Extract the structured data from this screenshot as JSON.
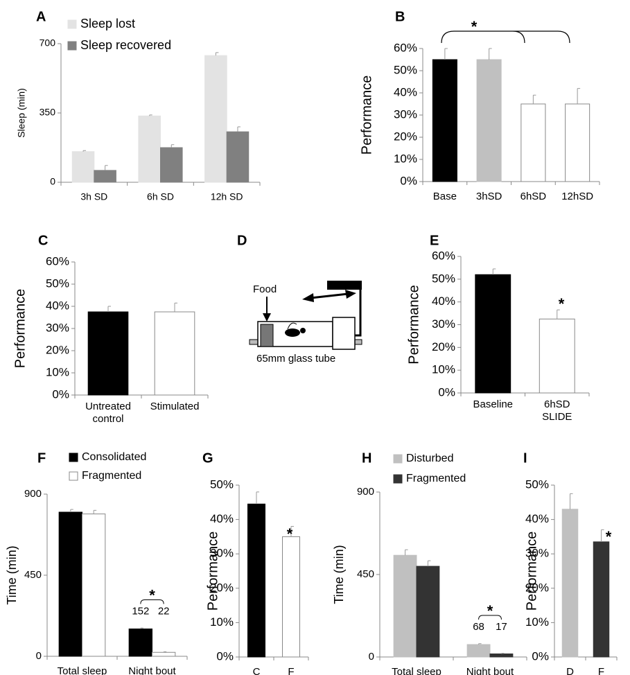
{
  "chart_data": [
    {
      "type": "bar",
      "panel": "A",
      "ylabel": "Sleep (min)",
      "categories": [
        "3h SD",
        "6h SD",
        "12h SD"
      ],
      "series": [
        {
          "name": "Sleep lost",
          "color": "#e3e3e3",
          "values": [
            155,
            335,
            640
          ],
          "errors": [
            5,
            5,
            15
          ]
        },
        {
          "name": "Sleep recovered",
          "color": "#808080",
          "values": [
            60,
            175,
            255
          ],
          "errors": [
            25,
            15,
            25
          ]
        }
      ],
      "ylim": [
        0,
        700
      ],
      "yticks": [
        0,
        350,
        700
      ],
      "legend": "top-left"
    },
    {
      "type": "bar",
      "panel": "B",
      "ylabel": "Performance",
      "categories": [
        "Base",
        "3hSD",
        "6hSD",
        "12hSD"
      ],
      "series": [
        {
          "values": [
            55,
            55,
            35,
            35
          ],
          "colors": [
            "#000000",
            "#c0c0c0",
            "#ffffff",
            "#ffffff"
          ],
          "errors": [
            5,
            5,
            4,
            7
          ]
        }
      ],
      "annotation": "*",
      "ylim": [
        0,
        60
      ],
      "yticks": [
        {
          "value": 0,
          "label": "0%"
        },
        {
          "value": 10,
          "label": "10%"
        },
        {
          "value": 20,
          "label": "20%"
        },
        {
          "value": 30,
          "label": "30%"
        },
        {
          "value": 40,
          "label": "40%"
        },
        {
          "value": 50,
          "label": "50%"
        },
        {
          "value": 60,
          "label": "60%"
        }
      ]
    },
    {
      "type": "bar",
      "panel": "C",
      "ylabel": "Performance",
      "categories": [
        "Untreated control",
        "Stimulated"
      ],
      "series": [
        {
          "values": [
            37.5,
            37.5
          ],
          "colors": [
            "#000000",
            "#ffffff"
          ],
          "errors": [
            2.5,
            4
          ]
        }
      ],
      "ylim": [
        0,
        60
      ],
      "yticks": [
        {
          "value": 0,
          "label": "0%"
        },
        {
          "value": 10,
          "label": "10%"
        },
        {
          "value": 20,
          "label": "20%"
        },
        {
          "value": 30,
          "label": "30%"
        },
        {
          "value": 40,
          "label": "40%"
        },
        {
          "value": 50,
          "label": "50%"
        },
        {
          "value": 60,
          "label": "60%"
        }
      ]
    },
    {
      "type": "bar",
      "panel": "E",
      "ylabel": "Performance",
      "categories": [
        "Baseline",
        "6hSD SLIDE"
      ],
      "series": [
        {
          "values": [
            52,
            32.5
          ],
          "colors": [
            "#000000",
            "#ffffff"
          ],
          "errors": [
            2.5,
            4
          ]
        }
      ],
      "annotation": "*",
      "ylim": [
        0,
        60
      ],
      "yticks": [
        {
          "value": 0,
          "label": "0%"
        },
        {
          "value": 10,
          "label": "10%"
        },
        {
          "value": 20,
          "label": "20%"
        },
        {
          "value": 30,
          "label": "30%"
        },
        {
          "value": 40,
          "label": "40%"
        },
        {
          "value": 50,
          "label": "50%"
        },
        {
          "value": 60,
          "label": "60%"
        }
      ]
    },
    {
      "type": "bar",
      "panel": "F",
      "ylabel": "Time (min)",
      "categories": [
        "Total sleep",
        "Night bout"
      ],
      "series": [
        {
          "name": "Consolidated",
          "color": "#000000",
          "values": [
            800,
            152
          ],
          "errors": [
            15,
            5
          ],
          "value_labels": [
            null,
            "152"
          ]
        },
        {
          "name": "Fragmented",
          "color": "#ffffff",
          "values": [
            790,
            22
          ],
          "errors": [
            20,
            3
          ],
          "value_labels": [
            null,
            "22"
          ]
        }
      ],
      "annotation": "*",
      "ylim": [
        0,
        900
      ],
      "yticks": [
        0,
        450,
        900
      ],
      "legend": "top-left"
    },
    {
      "type": "bar",
      "panel": "G",
      "ylabel": "Performance",
      "categories": [
        "C",
        "F"
      ],
      "series": [
        {
          "values": [
            44.5,
            35
          ],
          "colors": [
            "#000000",
            "#ffffff"
          ],
          "errors": [
            3.5,
            3
          ]
        }
      ],
      "annotation": "*",
      "ylim": [
        0,
        50
      ],
      "yticks": [
        {
          "value": 0,
          "label": "0%"
        },
        {
          "value": 10,
          "label": "10%"
        },
        {
          "value": 20,
          "label": "20%"
        },
        {
          "value": 30,
          "label": "30%"
        },
        {
          "value": 40,
          "label": "40%"
        },
        {
          "value": 50,
          "label": "50%"
        }
      ]
    },
    {
      "type": "bar",
      "panel": "H",
      "ylabel": "Time (min)",
      "categories": [
        "Total sleep",
        "Night bout"
      ],
      "series": [
        {
          "name": "Disturbed",
          "color": "#c0c0c0",
          "values": [
            555,
            68
          ],
          "errors": [
            30,
            5
          ],
          "value_labels": [
            null,
            "68"
          ]
        },
        {
          "name": "Fragmented",
          "color": "#333333",
          "values": [
            495,
            17
          ],
          "errors": [
            30,
            3
          ],
          "value_labels": [
            null,
            "17"
          ]
        }
      ],
      "annotation": "*",
      "ylim": [
        0,
        900
      ],
      "yticks": [
        0,
        450,
        900
      ],
      "legend": "top-left"
    },
    {
      "type": "bar",
      "panel": "I",
      "ylabel": "Performance",
      "categories": [
        "D",
        "F"
      ],
      "series": [
        {
          "values": [
            43,
            33.5
          ],
          "colors": [
            "#c0c0c0",
            "#333333"
          ],
          "errors": [
            4.5,
            3.5
          ]
        }
      ],
      "annotation": "*",
      "ylim": [
        0,
        50
      ],
      "yticks": [
        {
          "value": 0,
          "label": "0%"
        },
        {
          "value": 10,
          "label": "10%"
        },
        {
          "value": 20,
          "label": "20%"
        },
        {
          "value": 30,
          "label": "30%"
        },
        {
          "value": 40,
          "label": "40%"
        },
        {
          "value": 50,
          "label": "50%"
        }
      ]
    }
  ],
  "diagram": {
    "panel": "D",
    "food": "Food",
    "tube": "65mm glass tube"
  }
}
